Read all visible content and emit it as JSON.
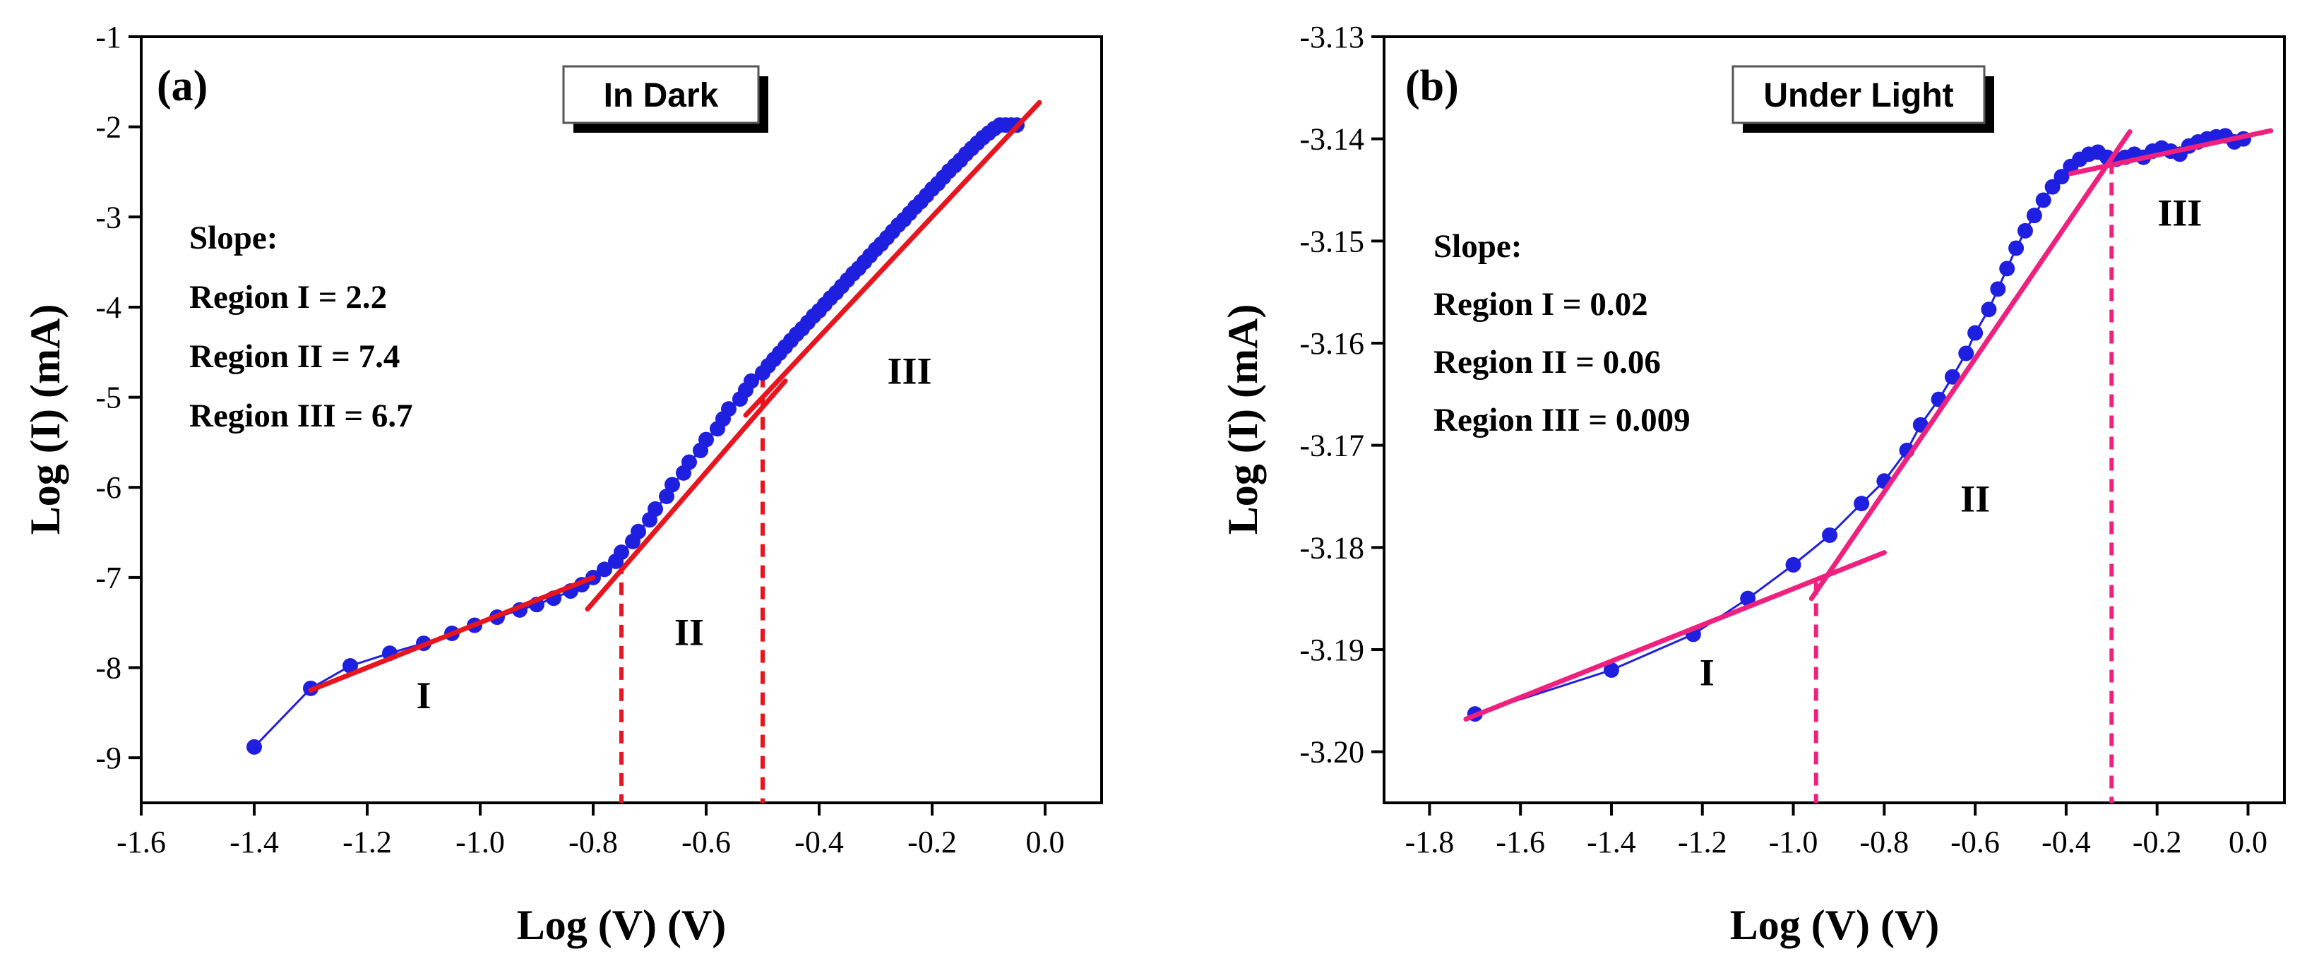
{
  "chart_data": [
    {
      "type": "line",
      "panel_label": "(a)",
      "title": "In Dark",
      "xlabel": "Log (V) (V)",
      "ylabel": "Log (I) (mA)",
      "xlim": [
        -1.6,
        0.1
      ],
      "ylim": [
        -9.5,
        -1.0
      ],
      "xticks": [
        -1.6,
        -1.4,
        -1.2,
        -1.0,
        -0.8,
        -0.6,
        -0.4,
        -0.2,
        0.0
      ],
      "xtick_labels": [
        "-1.6",
        "-1.4",
        "-1.2",
        "-1.0",
        "-0.8",
        "-0.6",
        "-0.4",
        "-0.2",
        "0.0"
      ],
      "yticks": [
        -9,
        -8,
        -7,
        -6,
        -5,
        -4,
        -3,
        -2,
        -1
      ],
      "ytick_labels": [
        "-9",
        "-8",
        "-7",
        "-6",
        "-5",
        "-4",
        "-3",
        "-2",
        "-1"
      ],
      "colors": {
        "data": "#1f1fe0",
        "fit": "#e8141e",
        "guide": "#e8141e"
      },
      "series": [
        {
          "name": "measured",
          "x": [
            -1.4,
            -1.3,
            -1.23,
            -1.16,
            -1.1,
            -1.05,
            -1.01,
            -0.97,
            -0.93,
            -0.9,
            -0.87,
            -0.84,
            -0.82,
            -0.8,
            -0.78,
            -0.76,
            -0.75,
            -0.73,
            -0.72,
            -0.7,
            -0.69,
            -0.67,
            -0.66,
            -0.64,
            -0.63,
            -0.61,
            -0.6,
            -0.58,
            -0.57,
            -0.56,
            -0.54,
            -0.53,
            -0.52,
            -0.5,
            -0.49,
            -0.48,
            -0.47,
            -0.46,
            -0.45,
            -0.44,
            -0.43,
            -0.42,
            -0.41,
            -0.4,
            -0.39,
            -0.38,
            -0.37,
            -0.36,
            -0.35,
            -0.34,
            -0.33,
            -0.32,
            -0.31,
            -0.3,
            -0.29,
            -0.28,
            -0.27,
            -0.26,
            -0.25,
            -0.24,
            -0.23,
            -0.22,
            -0.21,
            -0.2,
            -0.19,
            -0.18,
            -0.17,
            -0.16,
            -0.15,
            -0.14,
            -0.13,
            -0.12,
            -0.11,
            -0.1,
            -0.09,
            -0.08,
            -0.07,
            -0.06,
            -0.05
          ],
          "y": [
            -8.88,
            -8.23,
            -7.98,
            -7.84,
            -7.73,
            -7.62,
            -7.53,
            -7.44,
            -7.36,
            -7.3,
            -7.23,
            -7.15,
            -7.08,
            -7.0,
            -6.91,
            -6.82,
            -6.72,
            -6.6,
            -6.49,
            -6.36,
            -6.24,
            -6.1,
            -5.97,
            -5.84,
            -5.72,
            -5.59,
            -5.47,
            -5.35,
            -5.24,
            -5.13,
            -5.02,
            -4.92,
            -4.82,
            -4.73,
            -4.65,
            -4.58,
            -4.51,
            -4.44,
            -4.37,
            -4.3,
            -4.24,
            -4.17,
            -4.1,
            -4.04,
            -3.97,
            -3.9,
            -3.84,
            -3.77,
            -3.7,
            -3.63,
            -3.57,
            -3.5,
            -3.43,
            -3.36,
            -3.3,
            -3.23,
            -3.16,
            -3.09,
            -3.03,
            -2.96,
            -2.89,
            -2.83,
            -2.76,
            -2.69,
            -2.63,
            -2.56,
            -2.49,
            -2.43,
            -2.37,
            -2.3,
            -2.24,
            -2.18,
            -2.12,
            -2.07,
            -2.02,
            -1.98,
            -1.98,
            -1.98,
            -1.98
          ]
        }
      ],
      "fit_lines": [
        {
          "x": [
            -1.3,
            -0.8
          ],
          "y": [
            -8.25,
            -7.0
          ]
        },
        {
          "x": [
            -0.81,
            -0.46
          ],
          "y": [
            -7.35,
            -4.82
          ]
        },
        {
          "x": [
            -0.53,
            -0.01
          ],
          "y": [
            -5.2,
            -1.73
          ]
        }
      ],
      "guide_lines": [
        {
          "x": -0.75,
          "y_top": -6.82
        },
        {
          "x": -0.5,
          "y_top": -4.75
        }
      ],
      "annotations": {
        "slope_title": "Slope:",
        "slope_lines": [
          "Region I = 2.2",
          "Region II = 7.4",
          "Region III = 6.7"
        ],
        "regions": [
          {
            "label": "I",
            "x": -1.1,
            "y": -8.45
          },
          {
            "label": "II",
            "x": -0.63,
            "y": -7.75
          },
          {
            "label": "III",
            "x": -0.24,
            "y": -4.85
          }
        ]
      }
    },
    {
      "type": "line",
      "panel_label": "(b)",
      "title": "Under Light",
      "xlabel": "Log (V) (V)",
      "ylabel": "Log (I) (mA)",
      "xlim": [
        -1.9,
        0.08
      ],
      "ylim": [
        -3.205,
        -3.13
      ],
      "xticks": [
        -1.8,
        -1.6,
        -1.4,
        -1.2,
        -1.0,
        -0.8,
        -0.6,
        -0.4,
        -0.2,
        0.0
      ],
      "xtick_labels": [
        "-1.8",
        "-1.6",
        "-1.4",
        "-1.2",
        "-1.0",
        "-0.8",
        "-0.6",
        "-0.4",
        "-0.2",
        "0.0"
      ],
      "yticks": [
        -3.2,
        -3.19,
        -3.18,
        -3.17,
        -3.16,
        -3.15,
        -3.14,
        -3.13
      ],
      "ytick_labels": [
        "-3.20",
        "-3.19",
        "-3.18",
        "-3.17",
        "-3.16",
        "-3.15",
        "-3.14",
        "-3.13"
      ],
      "colors": {
        "data": "#1f1fe0",
        "fit": "#f0207e",
        "guide": "#f0207e"
      },
      "series": [
        {
          "name": "measured",
          "x": [
            -1.7,
            -1.4,
            -1.22,
            -1.1,
            -1.0,
            -0.92,
            -0.85,
            -0.8,
            -0.75,
            -0.72,
            -0.68,
            -0.65,
            -0.62,
            -0.6,
            -0.57,
            -0.55,
            -0.53,
            -0.51,
            -0.49,
            -0.47,
            -0.45,
            -0.43,
            -0.41,
            -0.39,
            -0.37,
            -0.35,
            -0.33,
            -0.31,
            -0.29,
            -0.27,
            -0.25,
            -0.23,
            -0.21,
            -0.19,
            -0.17,
            -0.15,
            -0.13,
            -0.11,
            -0.09,
            -0.07,
            -0.05,
            -0.03,
            -0.01
          ],
          "y": [
            -3.1963,
            -3.192,
            -3.1885,
            -3.185,
            -3.1817,
            -3.1788,
            -3.1757,
            -3.1735,
            -3.1705,
            -3.168,
            -3.1655,
            -3.1633,
            -3.161,
            -3.159,
            -3.1567,
            -3.1547,
            -3.1527,
            -3.1507,
            -3.149,
            -3.1475,
            -3.146,
            -3.1447,
            -3.1437,
            -3.1427,
            -3.142,
            -3.1415,
            -3.1413,
            -3.1418,
            -3.142,
            -3.1418,
            -3.1415,
            -3.1418,
            -3.1412,
            -3.1409,
            -3.1412,
            -3.1415,
            -3.1407,
            -3.1403,
            -3.14,
            -3.1398,
            -3.1397,
            -3.1403,
            -3.14
          ]
        }
      ],
      "fit_lines": [
        {
          "x": [
            -1.72,
            -0.8
          ],
          "y": [
            -3.1968,
            -3.1805
          ]
        },
        {
          "x": [
            -0.96,
            -0.26
          ],
          "y": [
            -3.185,
            -3.1393
          ]
        },
        {
          "x": [
            -0.39,
            0.05
          ],
          "y": [
            -3.1434,
            -3.1392
          ]
        }
      ],
      "guide_lines": [
        {
          "x": -0.95,
          "y_top": -3.1834
        },
        {
          "x": -0.3,
          "y_top": -3.1422
        }
      ],
      "annotations": {
        "slope_title": "Slope:",
        "slope_lines": [
          "Region I = 0.02",
          "Region II = 0.06",
          "Region III = 0.009"
        ],
        "regions": [
          {
            "label": "I",
            "x": -1.19,
            "y": -3.1935
          },
          {
            "label": "II",
            "x": -0.6,
            "y": -3.1765
          },
          {
            "label": "III",
            "x": -0.15,
            "y": -3.1485
          }
        ]
      }
    }
  ]
}
